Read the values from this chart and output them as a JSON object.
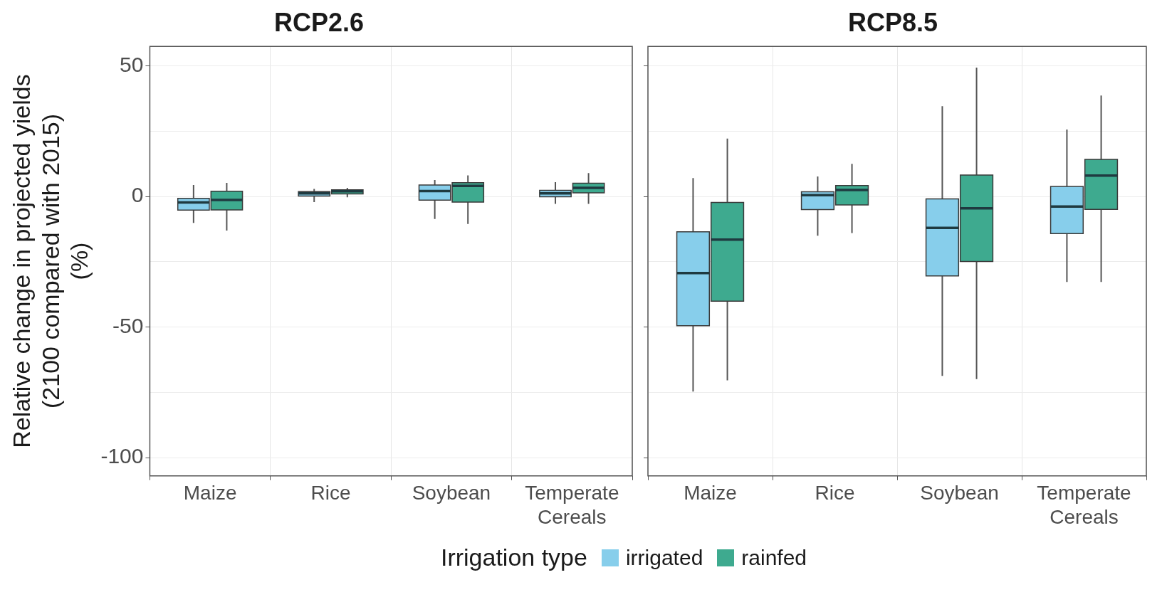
{
  "chart_data": [
    {
      "type": "box",
      "title": "RCP2.6",
      "ylabel": "Relative change in projected yields\n(2100 compared with 2015)\n(%)",
      "legend_title": "Irrigation type",
      "legend": "bottom",
      "grid": true,
      "categories": [
        "Maize",
        "Rice",
        "Soybean",
        "Temperate Cereals"
      ],
      "ylim": [
        -107,
        57.5
      ],
      "yticks": [
        -100,
        {
          "value": -75,
          "label": null
        },
        -50,
        {
          "value": -25,
          "label": null
        },
        0,
        {
          "value": 25,
          "label": null
        },
        50
      ],
      "series": [
        {
          "name": "irrigated",
          "color": "#87ceeb",
          "boxes": [
            {
              "low": -10.1,
              "q1": -5.2,
              "median": -2.3,
              "q3": -0.7,
              "high": 4.4
            },
            {
              "low": -2.1,
              "q1": 0.2,
              "median": 1.2,
              "q3": 1.9,
              "high": 2.9
            },
            {
              "low": -8.6,
              "q1": -1.4,
              "median": 2.1,
              "q3": 4.4,
              "high": 6.3
            },
            {
              "low": -2.8,
              "q1": -0.1,
              "median": 1.2,
              "q3": 2.4,
              "high": 5.5
            }
          ]
        },
        {
          "name": "rainfed",
          "color": "#3eaa8f",
          "boxes": [
            {
              "low": -13,
              "q1": -5.1,
              "median": -1.3,
              "q3": 2,
              "high": 5.2
            },
            {
              "low": -0.3,
              "q1": 1,
              "median": 2,
              "q3": 2.6,
              "high": 3.3
            },
            {
              "low": -10.5,
              "q1": -2.1,
              "median": 4.1,
              "q3": 5.3,
              "high": 8.1
            },
            {
              "low": -2.8,
              "q1": 1.4,
              "median": 3.3,
              "q3": 5.1,
              "high": 9
            }
          ]
        }
      ]
    },
    {
      "type": "box",
      "title": "RCP8.5",
      "grid": true,
      "tick_labels": "x",
      "categories": [
        "Maize",
        "Rice",
        "Soybean",
        "Temperate Cereals"
      ],
      "ylim": [
        -107,
        57.5
      ],
      "yticks": [
        -100,
        {
          "value": -75,
          "label": null
        },
        -50,
        {
          "value": -25,
          "label": null
        },
        0,
        {
          "value": 25,
          "label": null
        },
        50
      ],
      "series": [
        {
          "color": "#87ceeb",
          "boxes": [
            {
              "low": -74.7,
              "q1": -49.5,
              "median": -29.3,
              "q3": -13.5,
              "high": 7.1
            },
            {
              "low": -15,
              "q1": -5,
              "median": 0.5,
              "q3": 1.8,
              "high": 7.7
            },
            {
              "low": -68.7,
              "q1": -30.4,
              "median": -12,
              "q3": -0.9,
              "high": 34.6
            },
            {
              "low": -32.7,
              "q1": -14.2,
              "median": -3.8,
              "q3": 3.9,
              "high": 25.7
            }
          ]
        },
        {
          "color": "#3eaa8f",
          "boxes": [
            {
              "low": -70.4,
              "q1": -40.1,
              "median": -16.5,
              "q3": -2.3,
              "high": 22.2
            },
            {
              "low": -14,
              "q1": -3.2,
              "median": 2.5,
              "q3": 4.2,
              "high": 12.5
            },
            {
              "low": -69.9,
              "q1": -24.9,
              "median": -4.5,
              "q3": 8.2,
              "high": 49.4
            },
            {
              "low": -32.7,
              "q1": -4.9,
              "median": 8,
              "q3": 14.2,
              "high": 38.7
            }
          ]
        }
      ]
    }
  ]
}
